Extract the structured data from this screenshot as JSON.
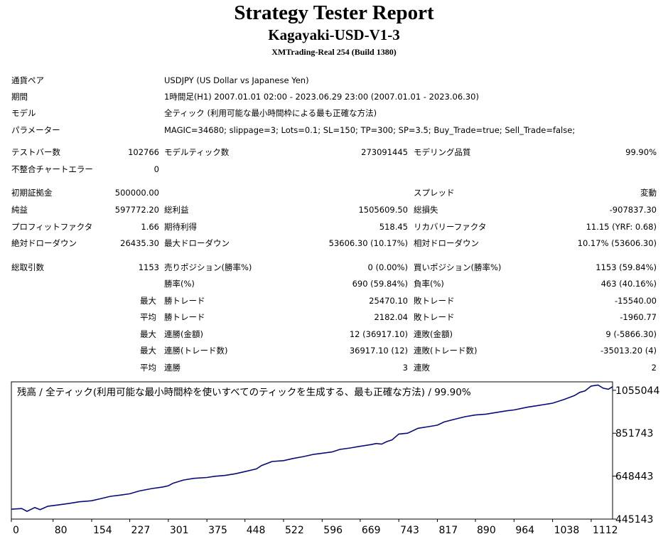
{
  "report": {
    "title": "Strategy Tester Report",
    "ea_name": "Kagayaki-USD-V1-3",
    "server": "XMTrading-Real 254 (Build 1380)"
  },
  "settings": [
    {
      "label": "通貨ペア",
      "value": "USDJPY (US Dollar vs Japanese Yen)"
    },
    {
      "label": "期間",
      "value": "1時間足(H1) 2007.01.01 02:00 - 2023.06.29 23:00 (2007.01.01 - 2023.06.30)"
    },
    {
      "label": "モデル",
      "value": "全ティック (利用可能な最小時間枠による最も正確な方法)"
    },
    {
      "label": "パラメーター",
      "value": "MAGIC=34680; slippage=3; Lots=0.1; SL=150; TP=300; SP=3.5; Buy_Trade=true; Sell_Trade=false;"
    }
  ],
  "stats": {
    "bars_label": "テストバー数",
    "bars": "102766",
    "ticks_label": "モデルティック数",
    "ticks": "273091445",
    "quality_label": "モデリング品質",
    "quality": "99.90%",
    "mismatch_label": "不整合チャートエラー",
    "mismatch": "0",
    "deposit_label": "初期証拠金",
    "deposit": "500000.00",
    "spread_label": "スプレッド",
    "spread": "変動",
    "net_label": "純益",
    "net": "597772.20",
    "gross_profit_label": "総利益",
    "gross_profit": "1505609.50",
    "gross_loss_label": "総損失",
    "gross_loss": "-907837.30",
    "pf_label": "プロフィットファクタ",
    "pf": "1.66",
    "expected_label": "期待利得",
    "expected": "518.45",
    "recovery_label": "リカバリーファクタ",
    "recovery": "11.15 (YRF: 0.68)",
    "abs_dd_label": "絶対ドローダウン",
    "abs_dd": "26435.30",
    "max_dd_label": "最大ドローダウン",
    "max_dd": "53606.30 (10.17%)",
    "rel_dd_label": "相対ドローダウン",
    "rel_dd": "10.17% (53606.30)",
    "total_label": "総取引数",
    "total": "1153",
    "short_label": "売りポジション(勝率%)",
    "short": "0 (0.00%)",
    "long_label": "買いポジション(勝率%)",
    "long": "1153 (59.84%)",
    "win_pct_label": "勝率(%)",
    "win_pct": "690 (59.84%)",
    "loss_pct_label": "負率(%)",
    "loss_pct": "463 (40.16%)",
    "max_prefix": "最大",
    "avg_prefix": "平均",
    "largest_win_label": "勝トレード",
    "largest_win": "25470.10",
    "largest_loss_label": "敗トレード",
    "largest_loss": "-15540.00",
    "avg_win_label": "勝トレード",
    "avg_win": "2182.04",
    "avg_loss_label": "敗トレード",
    "avg_loss": "-1960.77",
    "max_consec_win_money_label": "連勝(金額)",
    "max_consec_win_money": "12 (36917.10)",
    "max_consec_loss_money_label": "連敗(金額)",
    "max_consec_loss_money": "9 (-5866.30)",
    "max_consec_win_count_label": "連勝(トレード数)",
    "max_consec_win_count": "36917.10 (12)",
    "max_consec_loss_count_label": "連敗(トレード数)",
    "max_consec_loss_count": "-35013.20 (4)",
    "avg_consec_win_label": "連勝",
    "avg_consec_win": "3",
    "avg_consec_loss_label": "連敗",
    "avg_consec_loss": "2"
  },
  "chart_data": {
    "type": "line",
    "title": "残高 / 全ティック(利用可能な最小時間枠を使いすべてのティックを生成する、最も正確な方法) / 99.90%",
    "xlabel": "",
    "ylabel": "",
    "x_ticks": [
      0,
      80,
      154,
      227,
      301,
      375,
      448,
      522,
      596,
      669,
      743,
      817,
      890,
      964,
      1038,
      1112
    ],
    "y_ticks": [
      445143,
      648443,
      851743,
      1055044
    ],
    "xlim": [
      0,
      1153
    ],
    "ylim": [
      445143,
      1095000
    ],
    "colors": {
      "line": "#0a0a78",
      "frame": "#000000"
    },
    "series": [
      {
        "x": [
          0,
          20,
          30,
          45,
          55,
          70,
          90,
          110,
          130,
          154,
          170,
          190,
          210,
          227,
          245,
          270,
          290,
          301,
          310,
          330,
          350,
          375,
          390,
          410,
          430,
          448,
          470,
          480,
          500,
          522,
          540,
          560,
          580,
          596,
          615,
          630,
          650,
          669,
          690,
          700,
          710,
          720,
          730,
          743,
          760,
          780,
          800,
          817,
          830,
          850,
          870,
          890,
          910,
          930,
          950,
          964,
          990,
          1010,
          1030,
          1038,
          1060,
          1080,
          1090,
          1100,
          1112,
          1125,
          1135,
          1145,
          1153
        ],
        "y": [
          492000,
          495000,
          482000,
          500000,
          490000,
          506000,
          512000,
          519000,
          527000,
          532000,
          541000,
          553000,
          559000,
          565000,
          578000,
          590000,
          597000,
          603000,
          615000,
          630000,
          638000,
          642000,
          648000,
          652000,
          660000,
          670000,
          683000,
          699000,
          718000,
          722000,
          732000,
          741000,
          752000,
          757000,
          763000,
          775000,
          782000,
          790000,
          798000,
          803000,
          800000,
          812000,
          820000,
          848000,
          852000,
          875000,
          883000,
          890000,
          905000,
          918000,
          930000,
          938000,
          942000,
          950000,
          958000,
          962000,
          975000,
          983000,
          991000,
          994000,
          1012000,
          1030000,
          1045000,
          1052000,
          1075000,
          1080000,
          1065000,
          1060000,
          1072000
        ]
      }
    ]
  }
}
